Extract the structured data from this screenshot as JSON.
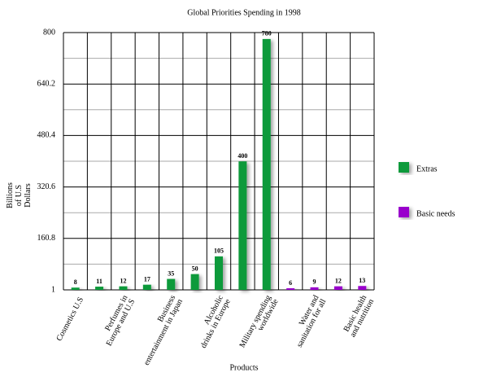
{
  "chart_data": {
    "type": "bar",
    "title": "Global Priorities Spending in 1998",
    "x_label": "Products",
    "y_label": "Billions of U.S Dollars",
    "categories": [
      "Cosmetics U.S",
      null,
      "Perfumes in Europe and U.S",
      null,
      "Business entertainment in Japan",
      null,
      "Alcoholic drinks in Europe",
      null,
      "Military spending worldwide",
      null,
      "Water and sanitation for all",
      null,
      "Basic health and nutrition"
    ],
    "series": [
      {
        "name": "Extras",
        "color": "#0a9a3a",
        "values": [
          8,
          11,
          12,
          17,
          35,
          50,
          105,
          400,
          780,
          null,
          null,
          null,
          null
        ]
      },
      {
        "name": "Basic needs",
        "color": "#9900cc",
        "values": [
          null,
          null,
          null,
          null,
          null,
          null,
          null,
          null,
          null,
          6,
          9,
          12,
          13
        ]
      }
    ],
    "ylim": [
      1,
      800
    ],
    "yticks": [
      1,
      160.8,
      320.6,
      480.4,
      640.2,
      800
    ],
    "grid": true,
    "legend": "right"
  }
}
